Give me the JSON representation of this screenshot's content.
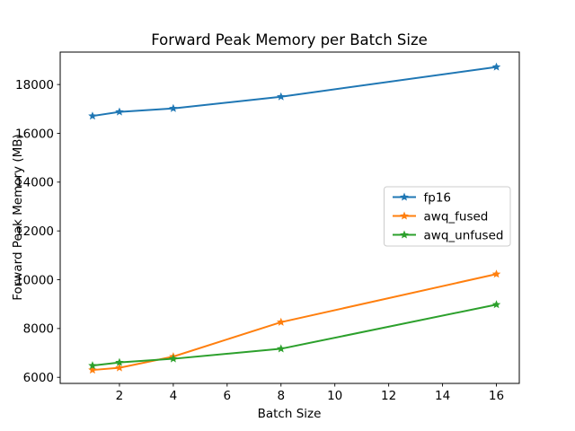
{
  "chart_data": {
    "type": "line",
    "title": "Forward Peak Memory per Batch Size",
    "xlabel": "Batch Size",
    "ylabel": "Forward Peak Memory (MB)",
    "x": [
      1,
      2,
      4,
      8,
      16
    ],
    "series": [
      {
        "name": "fp16",
        "color": "#1f77b4",
        "marker": "star",
        "values": [
          16710,
          16880,
          17020,
          17500,
          18720
        ]
      },
      {
        "name": "awq_fused",
        "color": "#ff7f0e",
        "marker": "star",
        "values": [
          6300,
          6390,
          6850,
          8260,
          10230
        ]
      },
      {
        "name": "awq_unfused",
        "color": "#2ca02c",
        "marker": "star",
        "values": [
          6480,
          6610,
          6760,
          7170,
          8980
        ]
      }
    ],
    "xticks": [
      2,
      4,
      6,
      8,
      10,
      12,
      14,
      16
    ],
    "yticks": [
      6000,
      8000,
      10000,
      12000,
      14000,
      16000,
      18000
    ],
    "xlim": [
      -0.2,
      16.85
    ],
    "ylim": [
      5750,
      19330
    ],
    "grid": false,
    "legend_position": "center right",
    "legend_entries": [
      "fp16",
      "awq_fused",
      "awq_unfused"
    ],
    "colors": {
      "axes": "#000000",
      "legend_border": "#cccccc",
      "background": "#ffffff"
    }
  }
}
